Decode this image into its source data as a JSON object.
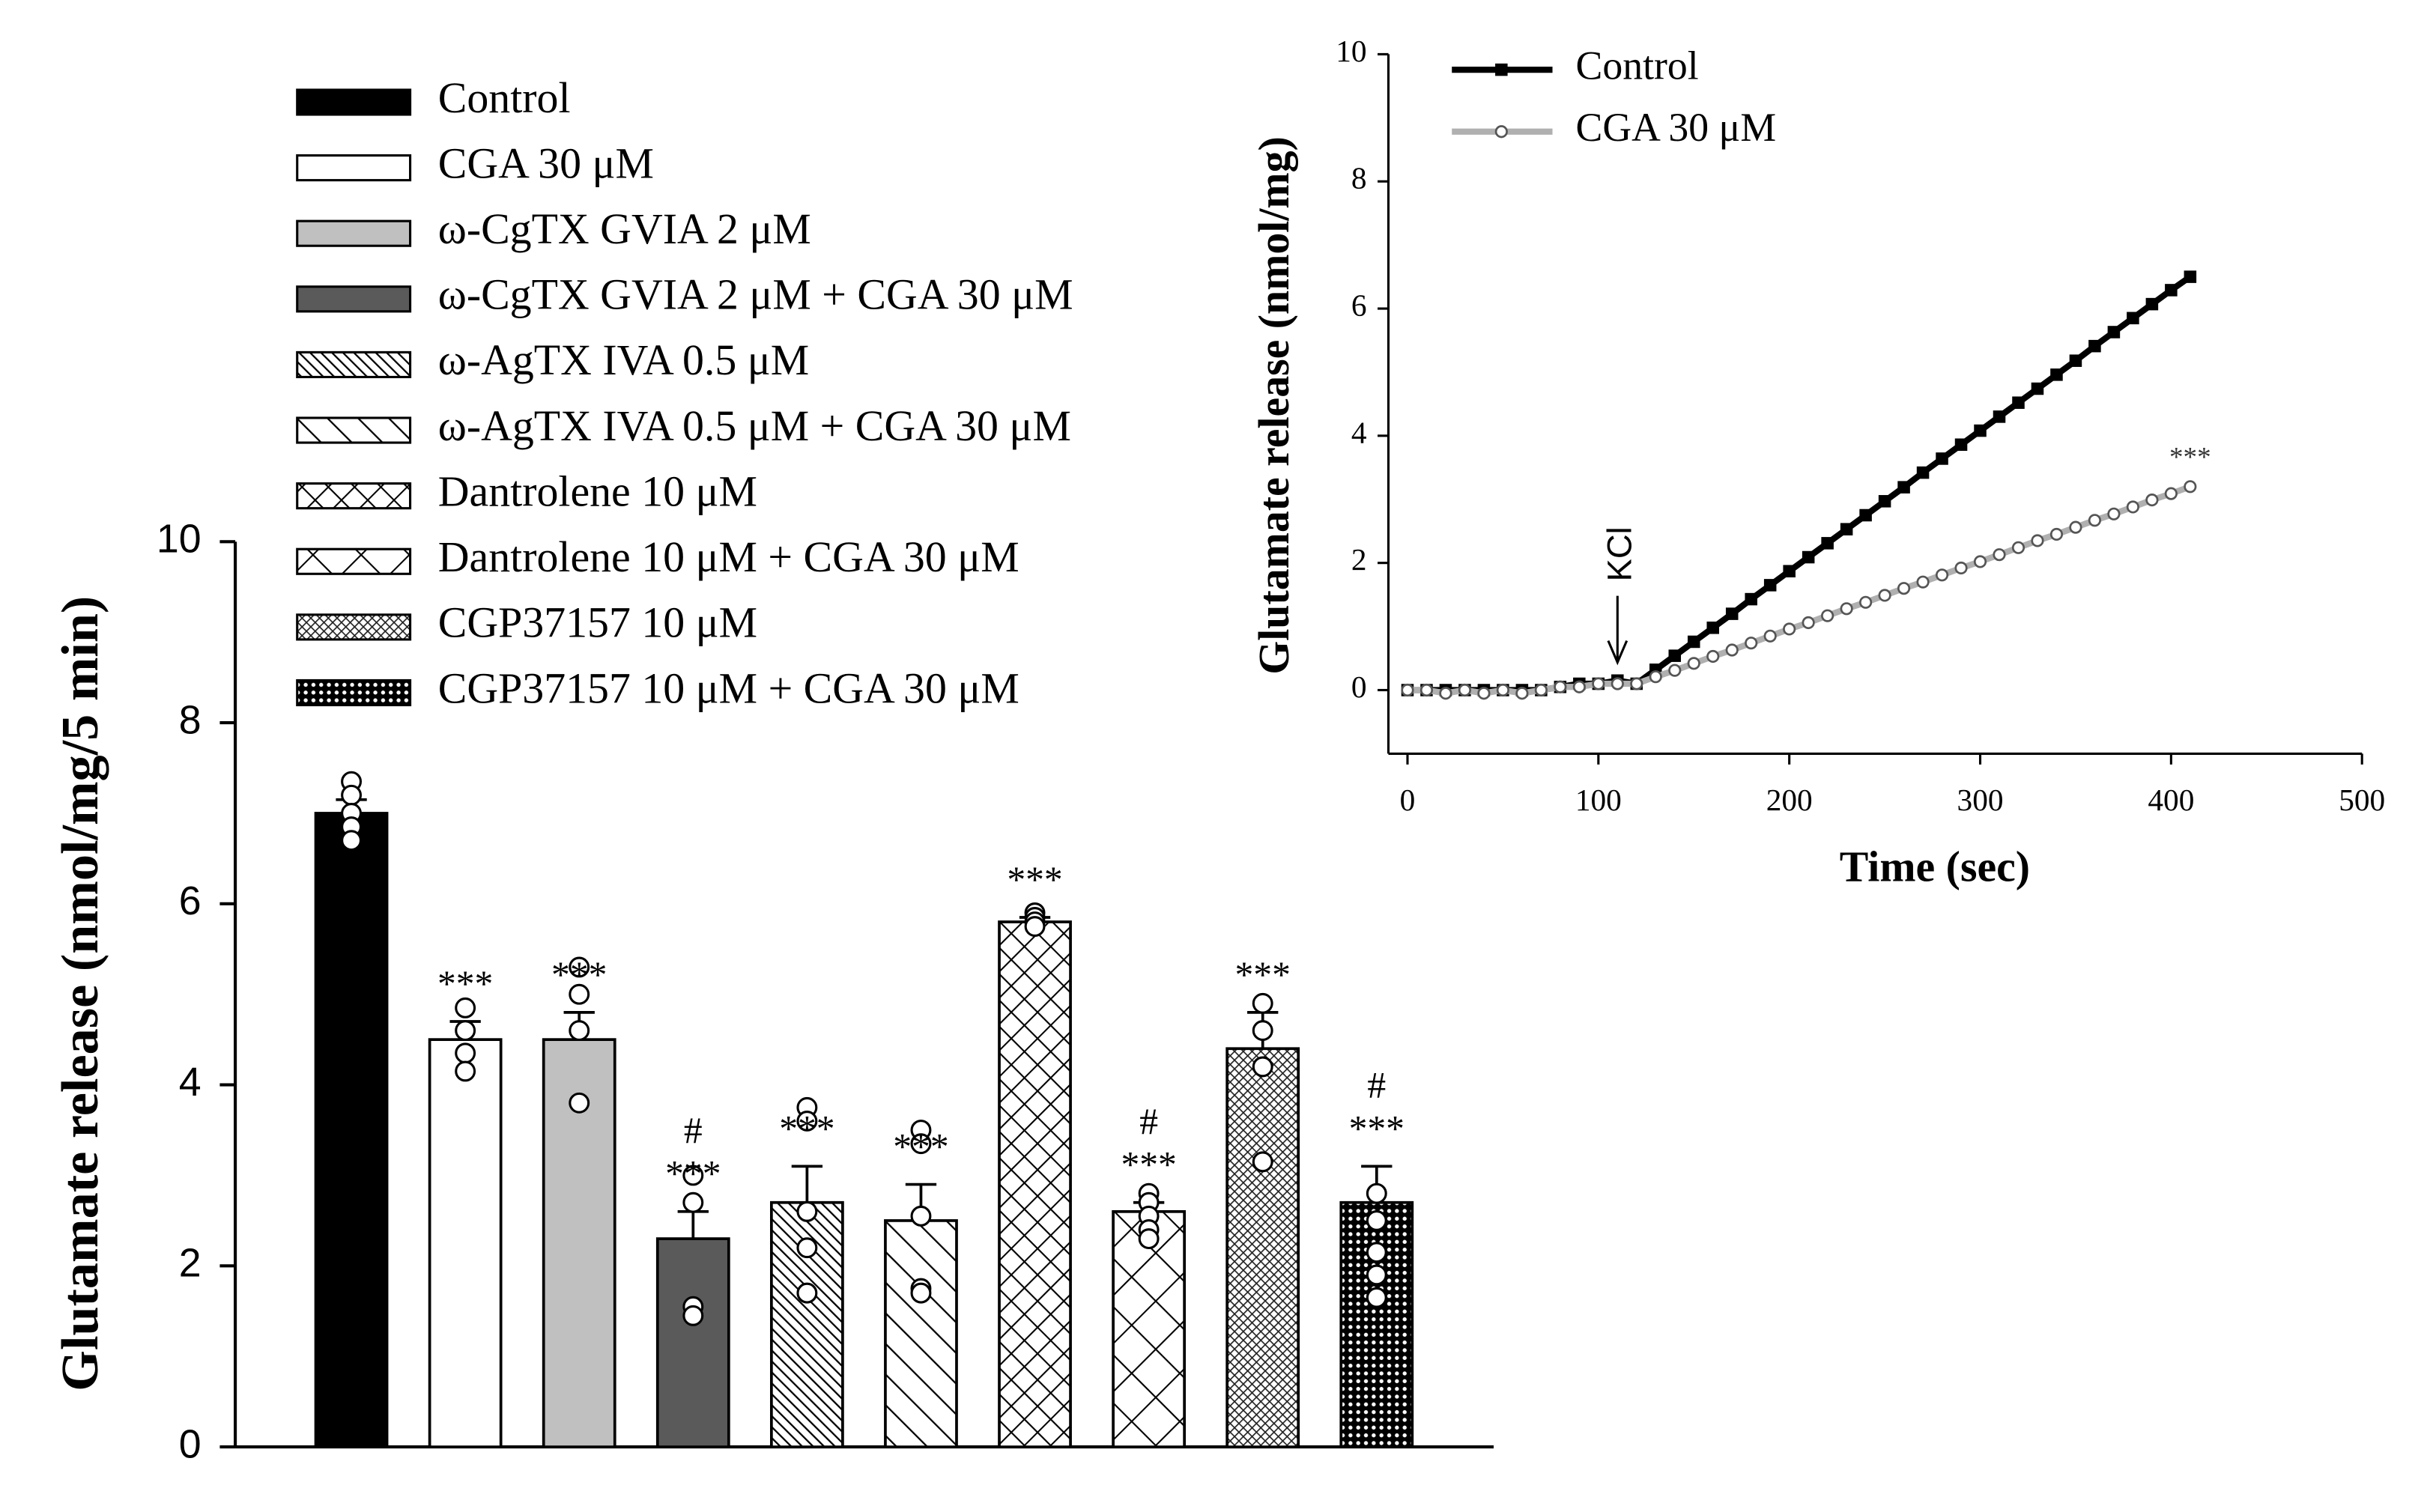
{
  "chart_data": [
    {
      "type": "bar",
      "ylabel": "Glutamate release (nmol/mg/5 min)",
      "categories": [
        "Control",
        "CGA 30 μM",
        "ω-CgTX GVIA 2 μM",
        "ω-CgTX GVIA 2 μM + CGA 30 μM",
        "ω-AgTX IVA 0.5 μM",
        "ω-AgTX IVA 0.5 μM + CGA 30 μM",
        "Dantrolene 10 μM",
        "Dantrolene 10 μM + CGA 30 μM",
        "CGP37157 10 μM",
        "CGP37157 10 μM + CGA 30 μM"
      ],
      "values": [
        7.0,
        4.5,
        4.5,
        2.3,
        2.7,
        2.5,
        5.8,
        2.6,
        4.4,
        2.7
      ],
      "errors": [
        0.15,
        0.2,
        0.3,
        0.3,
        0.4,
        0.4,
        0.05,
        0.1,
        0.4,
        0.4
      ],
      "points": [
        [
          7.35,
          7.2,
          7.0,
          6.85,
          6.7
        ],
        [
          4.85,
          4.6,
          4.35,
          4.15
        ],
        [
          5.3,
          5.0,
          4.6,
          3.8
        ],
        [
          3.0,
          2.7,
          1.55,
          1.45
        ],
        [
          3.75,
          3.6,
          2.6,
          2.2,
          1.7
        ],
        [
          3.5,
          3.35,
          2.55,
          1.75,
          1.7
        ],
        [
          5.9,
          5.85,
          5.8,
          5.75
        ],
        [
          2.8,
          2.7,
          2.55,
          2.4,
          2.3
        ],
        [
          4.9,
          4.6,
          4.2,
          3.15
        ],
        [
          2.8,
          2.5,
          2.15,
          1.9,
          1.65
        ]
      ],
      "fills": [
        "#000000",
        "#ffffff",
        "#c0c0c0",
        "#5a5a5a",
        "#ffffff",
        "#ffffff",
        "#ffffff",
        "#ffffff",
        "#ffffff",
        "#ffffff"
      ],
      "patterns": [
        "none",
        "none",
        "none",
        "none",
        "dense-diagonal",
        "sparse-diagonal",
        "crosshatch",
        "sparse-crosshatch",
        "fine-crosshatch",
        "dotted"
      ],
      "sig_labels": [
        null,
        "***",
        "***",
        "***",
        "***",
        "***",
        "***",
        "***",
        "***",
        "***"
      ],
      "hash_labels": [
        null,
        null,
        null,
        "#",
        null,
        null,
        null,
        "#",
        null,
        "#"
      ],
      "ylim": [
        0,
        10
      ],
      "yticks": [
        0,
        2,
        4,
        6,
        8,
        10
      ],
      "legend": "upper left"
    },
    {
      "type": "line",
      "ylabel": "Glutamate release (nmol/mg)",
      "xlabel": "Time (sec)",
      "x": [
        0,
        10,
        20,
        30,
        40,
        50,
        60,
        70,
        80,
        90,
        100,
        110,
        120,
        130,
        140,
        150,
        160,
        170,
        180,
        190,
        200,
        210,
        220,
        230,
        240,
        250,
        260,
        270,
        280,
        290,
        300,
        310,
        320,
        330,
        340,
        350,
        360,
        370,
        380,
        390,
        400,
        410
      ],
      "series": [
        {
          "name": "Control",
          "color": "#000000",
          "marker": "filled-square",
          "values": [
            0,
            0,
            0,
            0,
            0,
            0,
            0,
            0,
            0.05,
            0.1,
            0.1,
            0.15,
            0.1,
            0.32,
            0.54,
            0.76,
            0.98,
            1.2,
            1.43,
            1.65,
            1.87,
            2.09,
            2.31,
            2.53,
            2.75,
            2.97,
            3.19,
            3.42,
            3.64,
            3.86,
            4.08,
            4.3,
            4.52,
            4.74,
            4.96,
            5.18,
            5.41,
            5.63,
            5.85,
            6.07,
            6.29,
            6.5
          ]
        },
        {
          "name": "CGA 30 μM",
          "color": "#b0b0b0",
          "marker": "open-circle",
          "values": [
            0,
            0,
            -0.05,
            0,
            -0.05,
            0,
            -0.05,
            0,
            0.05,
            0.05,
            0.1,
            0.1,
            0.1,
            0.21,
            0.31,
            0.42,
            0.53,
            0.63,
            0.74,
            0.85,
            0.96,
            1.06,
            1.17,
            1.28,
            1.38,
            1.49,
            1.6,
            1.7,
            1.81,
            1.92,
            2.02,
            2.13,
            2.24,
            2.35,
            2.45,
            2.56,
            2.67,
            2.77,
            2.88,
            2.99,
            3.09,
            3.2
          ]
        }
      ],
      "annotations": [
        "KCl",
        "***"
      ],
      "xlim": [
        -10,
        500
      ],
      "xticks": [
        0,
        100,
        200,
        300,
        400,
        500
      ],
      "ylim": [
        -1,
        10
      ],
      "yticks": [
        0,
        2,
        4,
        6,
        8,
        10
      ],
      "legend": "upper left"
    }
  ]
}
